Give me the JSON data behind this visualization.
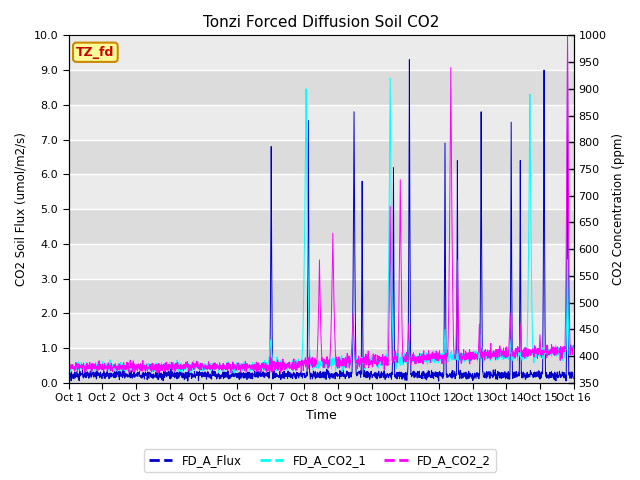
{
  "title": "Tonzi Forced Diffusion Soil CO2",
  "xlabel": "Time",
  "ylabel_left": "CO2 Soil Flux (umol/m2/s)",
  "ylabel_right": "CO2 Concentration (ppm)",
  "ylim_left": [
    0.0,
    10.0
  ],
  "ylim_right": [
    350,
    1000
  ],
  "yticks_left": [
    0.0,
    1.0,
    2.0,
    3.0,
    4.0,
    5.0,
    6.0,
    7.0,
    8.0,
    9.0,
    10.0
  ],
  "yticks_right": [
    350,
    400,
    450,
    500,
    550,
    600,
    650,
    700,
    750,
    800,
    850,
    900,
    950,
    1000
  ],
  "xtick_labels": [
    "Oct 1",
    "Oct 2",
    "Oct 3",
    "Oct 4",
    "Oct 5",
    "Oct 6",
    "Oct 7",
    "Oct 8",
    "Oct 9",
    "Oct 10",
    "Oct 11",
    "Oct 12",
    "Oct 13",
    "Oct 14",
    "Oct 15",
    "Oct 16"
  ],
  "color_flux": "#0000CC",
  "color_co2_1": "#00FFFF",
  "color_co2_2": "#FF00FF",
  "legend_label_flux": "FD_A_Flux",
  "legend_label_co2_1": "FD_A_CO2_1",
  "legend_label_co2_2": "FD_A_CO2_2",
  "tag_label": "TZ_fd",
  "tag_bg": "#FFFF99",
  "tag_border": "#CC8800",
  "tag_text_color": "#CC0000",
  "bg_dark": "#DCDCDC",
  "bg_light": "#EBEBEB",
  "n_points": 2000,
  "seed": 42
}
